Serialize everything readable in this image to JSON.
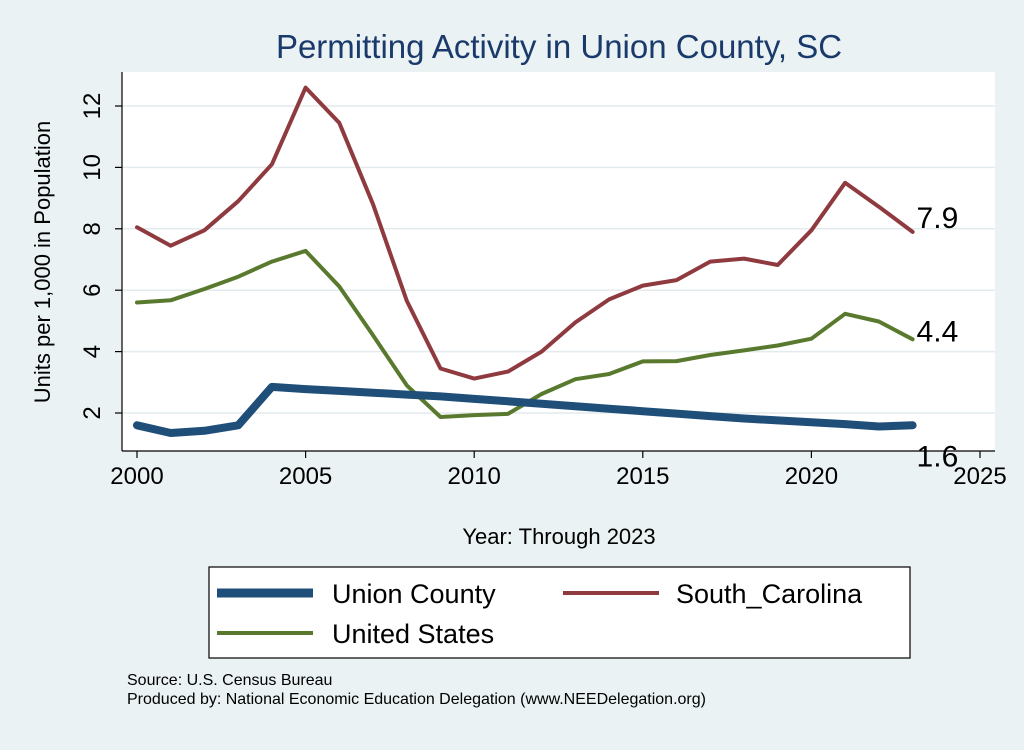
{
  "colors": {
    "background": "#eaf2f3",
    "plot_background": "#ffffff",
    "title": "#1a3a6b",
    "union_county": "#1f4e79",
    "south_carolina": "#8e3a3f",
    "united_states": "#597a2e"
  },
  "chart_data": {
    "type": "line",
    "title": "Permitting Activity in Union County, SC",
    "xlabel": "Year: Through 2023",
    "ylabel": "Units per 1,000 in Population",
    "xlim": [
      2000,
      2025
    ],
    "ylim": [
      1,
      13
    ],
    "x_ticks": [
      2000,
      2005,
      2010,
      2015,
      2020,
      2025
    ],
    "y_ticks": [
      2,
      4,
      6,
      8,
      10,
      12
    ],
    "x": [
      2000,
      2001,
      2002,
      2003,
      2004,
      2005,
      2006,
      2007,
      2008,
      2009,
      2010,
      2011,
      2012,
      2013,
      2014,
      2015,
      2016,
      2017,
      2018,
      2019,
      2020,
      2021,
      2022,
      2023
    ],
    "series": [
      {
        "name": "Union County",
        "key": "union_county",
        "end_label": "1.6",
        "values": [
          1.6,
          1.35,
          1.42,
          1.6,
          2.85,
          2.78,
          2.72,
          2.66,
          2.6,
          2.54,
          2.46,
          2.38,
          2.3,
          2.22,
          2.14,
          2.06,
          1.98,
          1.9,
          1.82,
          1.76,
          1.7,
          1.64,
          1.56,
          1.6
        ]
      },
      {
        "name": "South_Carolina",
        "key": "south_carolina",
        "end_label": "7.9",
        "values": [
          8.05,
          7.45,
          7.95,
          8.9,
          10.1,
          12.6,
          11.45,
          8.8,
          5.65,
          3.45,
          3.12,
          3.35,
          4.0,
          4.95,
          5.7,
          6.15,
          6.33,
          6.93,
          7.03,
          6.82,
          7.95,
          9.5,
          8.72,
          7.9
        ]
      },
      {
        "name": "United States",
        "key": "united_states",
        "end_label": "4.4",
        "values": [
          5.6,
          5.67,
          6.04,
          6.44,
          6.93,
          7.28,
          6.12,
          4.53,
          2.9,
          1.87,
          1.93,
          1.97,
          2.62,
          3.1,
          3.27,
          3.68,
          3.69,
          3.89,
          4.04,
          4.2,
          4.42,
          5.23,
          4.98,
          4.4
        ]
      }
    ],
    "legend": {
      "position": "bottom",
      "items": [
        "Union County",
        "South_Carolina",
        "United States"
      ]
    },
    "grid": true
  },
  "notes": {
    "source": "Source: U.S. Census Bureau",
    "produced_by": "Produced by: National Economic Education Delegation (www.NEEDelegation.org)"
  }
}
